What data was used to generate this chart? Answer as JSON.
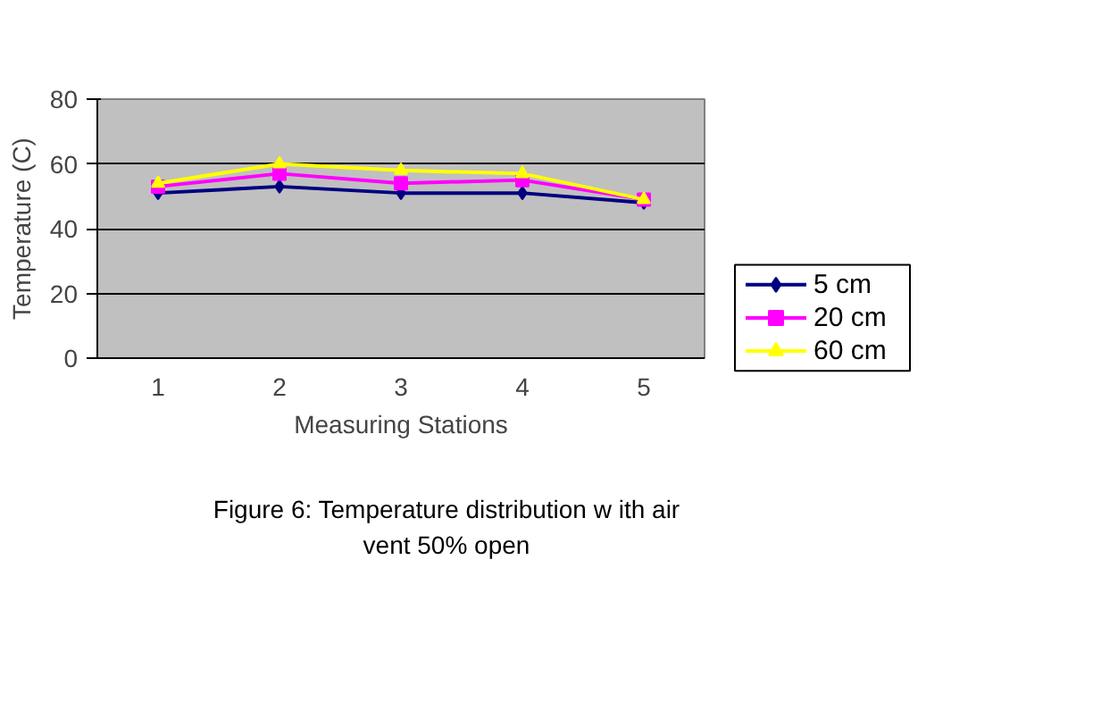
{
  "chart_data": {
    "type": "line",
    "xlabel": "Measuring Stations",
    "ylabel": "Temperature (C)",
    "categories": [
      "1",
      "2",
      "3",
      "4",
      "5"
    ],
    "series": [
      {
        "name": "5 cm",
        "color": "#000080",
        "marker": "diamond",
        "values": [
          51,
          53,
          51,
          51,
          48
        ]
      },
      {
        "name": "20 cm",
        "color": "#ff00ff",
        "marker": "square",
        "values": [
          53,
          57,
          54,
          55,
          49
        ]
      },
      {
        "name": "60 cm",
        "color": "#ffff00",
        "marker": "triangle",
        "values": [
          54,
          60,
          58,
          57,
          49
        ]
      }
    ],
    "ylim": [
      0,
      80
    ],
    "yticks": [
      0,
      20,
      40,
      60,
      80
    ],
    "grid": "y",
    "legend": "right",
    "annotations": [
      "Figure 6: Temperature distribution w ith air vent 50% open"
    ]
  }
}
